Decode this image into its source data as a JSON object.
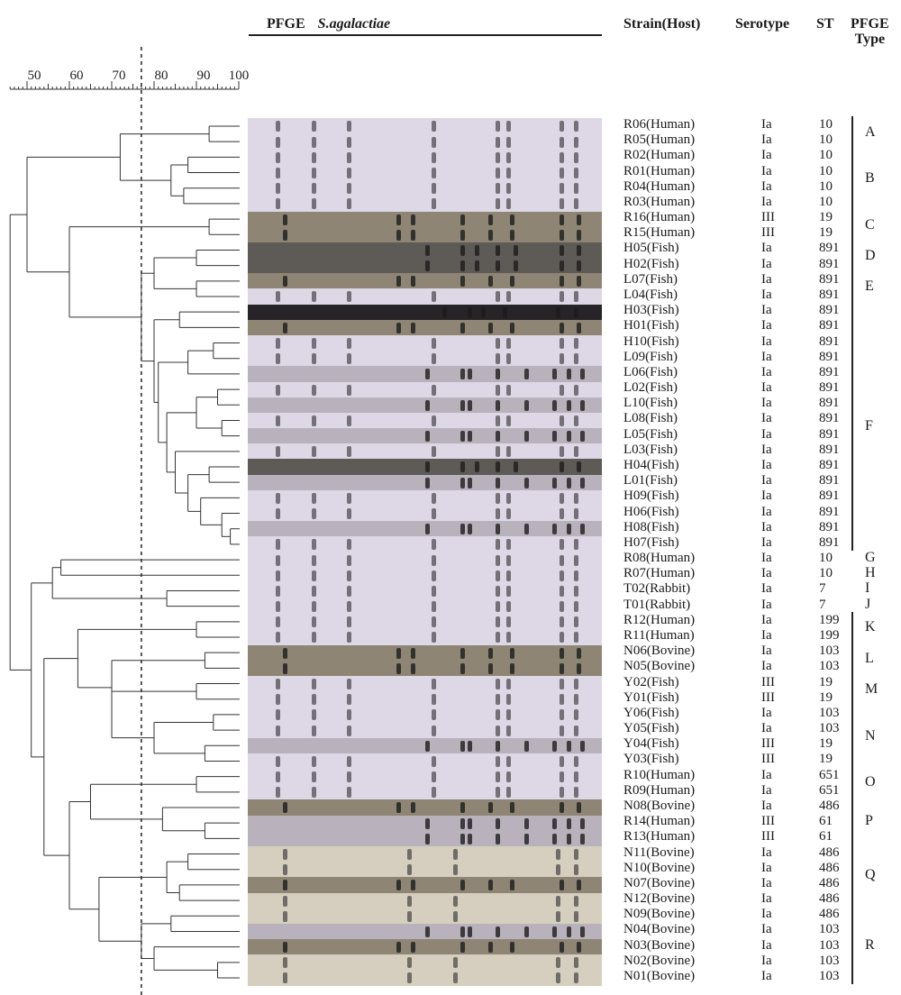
{
  "header": {
    "pfge": "PFGE",
    "organism": "S.agalactiae",
    "strain": "Strain(Host)",
    "serotype": "Serotype",
    "st": "ST",
    "type_line1": "PFGE",
    "type_line2": "Type"
  },
  "scale": {
    "labels": [
      "50",
      "60",
      "70",
      "80",
      "90",
      "100"
    ],
    "ticks": [
      50,
      60,
      70,
      80,
      90,
      100
    ],
    "cutoff": 77
  },
  "rows": [
    {
      "strain": "R06(Human)",
      "serotype": "Ia",
      "st": "10",
      "tone": "light"
    },
    {
      "strain": "R05(Human)",
      "serotype": "Ia",
      "st": "10",
      "tone": "light"
    },
    {
      "strain": "R02(Human)",
      "serotype": "Ia",
      "st": "10",
      "tone": "light"
    },
    {
      "strain": "R01(Human)",
      "serotype": "Ia",
      "st": "10",
      "tone": "light"
    },
    {
      "strain": "R04(Human)",
      "serotype": "Ia",
      "st": "10",
      "tone": "light"
    },
    {
      "strain": "R03(Human)",
      "serotype": "Ia",
      "st": "10",
      "tone": "light"
    },
    {
      "strain": "R16(Human)",
      "serotype": "III",
      "st": "19",
      "tone": "brown"
    },
    {
      "strain": "R15(Human)",
      "serotype": "III",
      "st": "19",
      "tone": "brown"
    },
    {
      "strain": "H05(Fish)",
      "serotype": "Ia",
      "st": "891",
      "tone": "dark"
    },
    {
      "strain": "H02(Fish)",
      "serotype": "Ia",
      "st": "891",
      "tone": "dark"
    },
    {
      "strain": "L07(Fish)",
      "serotype": "Ia",
      "st": "891",
      "tone": "brown"
    },
    {
      "strain": "L04(Fish)",
      "serotype": "Ia",
      "st": "891",
      "tone": "light"
    },
    {
      "strain": "H03(Fish)",
      "serotype": "Ia",
      "st": "891",
      "tone": "black"
    },
    {
      "strain": "H01(Fish)",
      "serotype": "Ia",
      "st": "891",
      "tone": "brown"
    },
    {
      "strain": "H10(Fish)",
      "serotype": "Ia",
      "st": "891",
      "tone": "light"
    },
    {
      "strain": "L09(Fish)",
      "serotype": "Ia",
      "st": "891",
      "tone": "light"
    },
    {
      "strain": "L06(Fish)",
      "serotype": "Ia",
      "st": "891",
      "tone": "mid"
    },
    {
      "strain": "L02(Fish)",
      "serotype": "Ia",
      "st": "891",
      "tone": "light"
    },
    {
      "strain": "L10(Fish)",
      "serotype": "Ia",
      "st": "891",
      "tone": "mid"
    },
    {
      "strain": "L08(Fish)",
      "serotype": "Ia",
      "st": "891",
      "tone": "light"
    },
    {
      "strain": "L05(Fish)",
      "serotype": "Ia",
      "st": "891",
      "tone": "mid"
    },
    {
      "strain": "L03(Fish)",
      "serotype": "Ia",
      "st": "891",
      "tone": "light"
    },
    {
      "strain": "H04(Fish)",
      "serotype": "Ia",
      "st": "891",
      "tone": "dark"
    },
    {
      "strain": "L01(Fish)",
      "serotype": "Ia",
      "st": "891",
      "tone": "mid"
    },
    {
      "strain": "H09(Fish)",
      "serotype": "Ia",
      "st": "891",
      "tone": "light"
    },
    {
      "strain": "H06(Fish)",
      "serotype": "Ia",
      "st": "891",
      "tone": "light"
    },
    {
      "strain": "H08(Fish)",
      "serotype": "Ia",
      "st": "891",
      "tone": "mid"
    },
    {
      "strain": "H07(Fish)",
      "serotype": "Ia",
      "st": "891",
      "tone": "light"
    },
    {
      "strain": "R08(Human)",
      "serotype": "Ia",
      "st": "10",
      "tone": "light"
    },
    {
      "strain": "R07(Human)",
      "serotype": "Ia",
      "st": "10",
      "tone": "light"
    },
    {
      "strain": "T02(Rabbit)",
      "serotype": "Ia",
      "st": "7",
      "tone": "light"
    },
    {
      "strain": "T01(Rabbit)",
      "serotype": "Ia",
      "st": "7",
      "tone": "light"
    },
    {
      "strain": "R12(Human)",
      "serotype": "Ia",
      "st": "199",
      "tone": "light"
    },
    {
      "strain": "R11(Human)",
      "serotype": "Ia",
      "st": "199",
      "tone": "light"
    },
    {
      "strain": "N06(Bovine)",
      "serotype": "Ia",
      "st": "103",
      "tone": "brown"
    },
    {
      "strain": "N05(Bovine)",
      "serotype": "Ia",
      "st": "103",
      "tone": "brown"
    },
    {
      "strain": "Y02(Fish)",
      "serotype": "III",
      "st": "19",
      "tone": "light"
    },
    {
      "strain": "Y01(Fish)",
      "serotype": "III",
      "st": "19",
      "tone": "light"
    },
    {
      "strain": "Y06(Fish)",
      "serotype": "Ia",
      "st": "103",
      "tone": "light"
    },
    {
      "strain": "Y05(Fish)",
      "serotype": "Ia",
      "st": "103",
      "tone": "light"
    },
    {
      "strain": "Y04(Fish)",
      "serotype": "III",
      "st": "19",
      "tone": "mid"
    },
    {
      "strain": "Y03(Fish)",
      "serotype": "III",
      "st": "19",
      "tone": "light"
    },
    {
      "strain": "R10(Human)",
      "serotype": "Ia",
      "st": "651",
      "tone": "light"
    },
    {
      "strain": "R09(Human)",
      "serotype": "Ia",
      "st": "651",
      "tone": "light"
    },
    {
      "strain": "N08(Bovine)",
      "serotype": "Ia",
      "st": "486",
      "tone": "brown"
    },
    {
      "strain": "R14(Human)",
      "serotype": "III",
      "st": "61",
      "tone": "mid"
    },
    {
      "strain": "R13(Human)",
      "serotype": "III",
      "st": "61",
      "tone": "mid"
    },
    {
      "strain": "N11(Bovine)",
      "serotype": "Ia",
      "st": "486",
      "tone": "cream"
    },
    {
      "strain": "N10(Bovine)",
      "serotype": "Ia",
      "st": "486",
      "tone": "cream"
    },
    {
      "strain": "N07(Bovine)",
      "serotype": "Ia",
      "st": "486",
      "tone": "brown"
    },
    {
      "strain": "N12(Bovine)",
      "serotype": "Ia",
      "st": "486",
      "tone": "cream"
    },
    {
      "strain": "N09(Bovine)",
      "serotype": "Ia",
      "st": "486",
      "tone": "cream"
    },
    {
      "strain": "N04(Bovine)",
      "serotype": "Ia",
      "st": "103",
      "tone": "mid"
    },
    {
      "strain": "N03(Bovine)",
      "serotype": "Ia",
      "st": "103",
      "tone": "brown"
    },
    {
      "strain": "N02(Bovine)",
      "serotype": "Ia",
      "st": "103",
      "tone": "cream"
    },
    {
      "strain": "N01(Bovine)",
      "serotype": "Ia",
      "st": "103",
      "tone": "cream"
    }
  ],
  "pfge_types": [
    {
      "label": "A",
      "first": 0,
      "last": 1
    },
    {
      "label": "B",
      "first": 2,
      "last": 5
    },
    {
      "label": "C",
      "first": 6,
      "last": 7
    },
    {
      "label": "D",
      "first": 8,
      "last": 9
    },
    {
      "label": "E",
      "first": 10,
      "last": 11
    },
    {
      "label": "F",
      "first": 12,
      "last": 27
    },
    {
      "label": "G",
      "first": 28,
      "last": 28
    },
    {
      "label": "H",
      "first": 29,
      "last": 29
    },
    {
      "label": "I",
      "first": 30,
      "last": 30
    },
    {
      "label": "J",
      "first": 31,
      "last": 31
    },
    {
      "label": "K",
      "first": 32,
      "last": 33
    },
    {
      "label": "L",
      "first": 34,
      "last": 35
    },
    {
      "label": "M",
      "first": 36,
      "last": 37
    },
    {
      "label": "N",
      "first": 38,
      "last": 41
    },
    {
      "label": "O",
      "first": 42,
      "last": 43
    },
    {
      "label": "P",
      "first": 44,
      "last": 46
    },
    {
      "label": "Q",
      "first": 47,
      "last": 50
    },
    {
      "label": "R",
      "first": 51,
      "last": 55
    }
  ],
  "colors": {
    "light": "#ddd7e6",
    "mid": "#b9b2bd",
    "brown": "#8e8575",
    "dark": "#5e5a55",
    "black": "#262426",
    "cream": "#d6cfc0",
    "band": "#1d1b1d"
  }
}
